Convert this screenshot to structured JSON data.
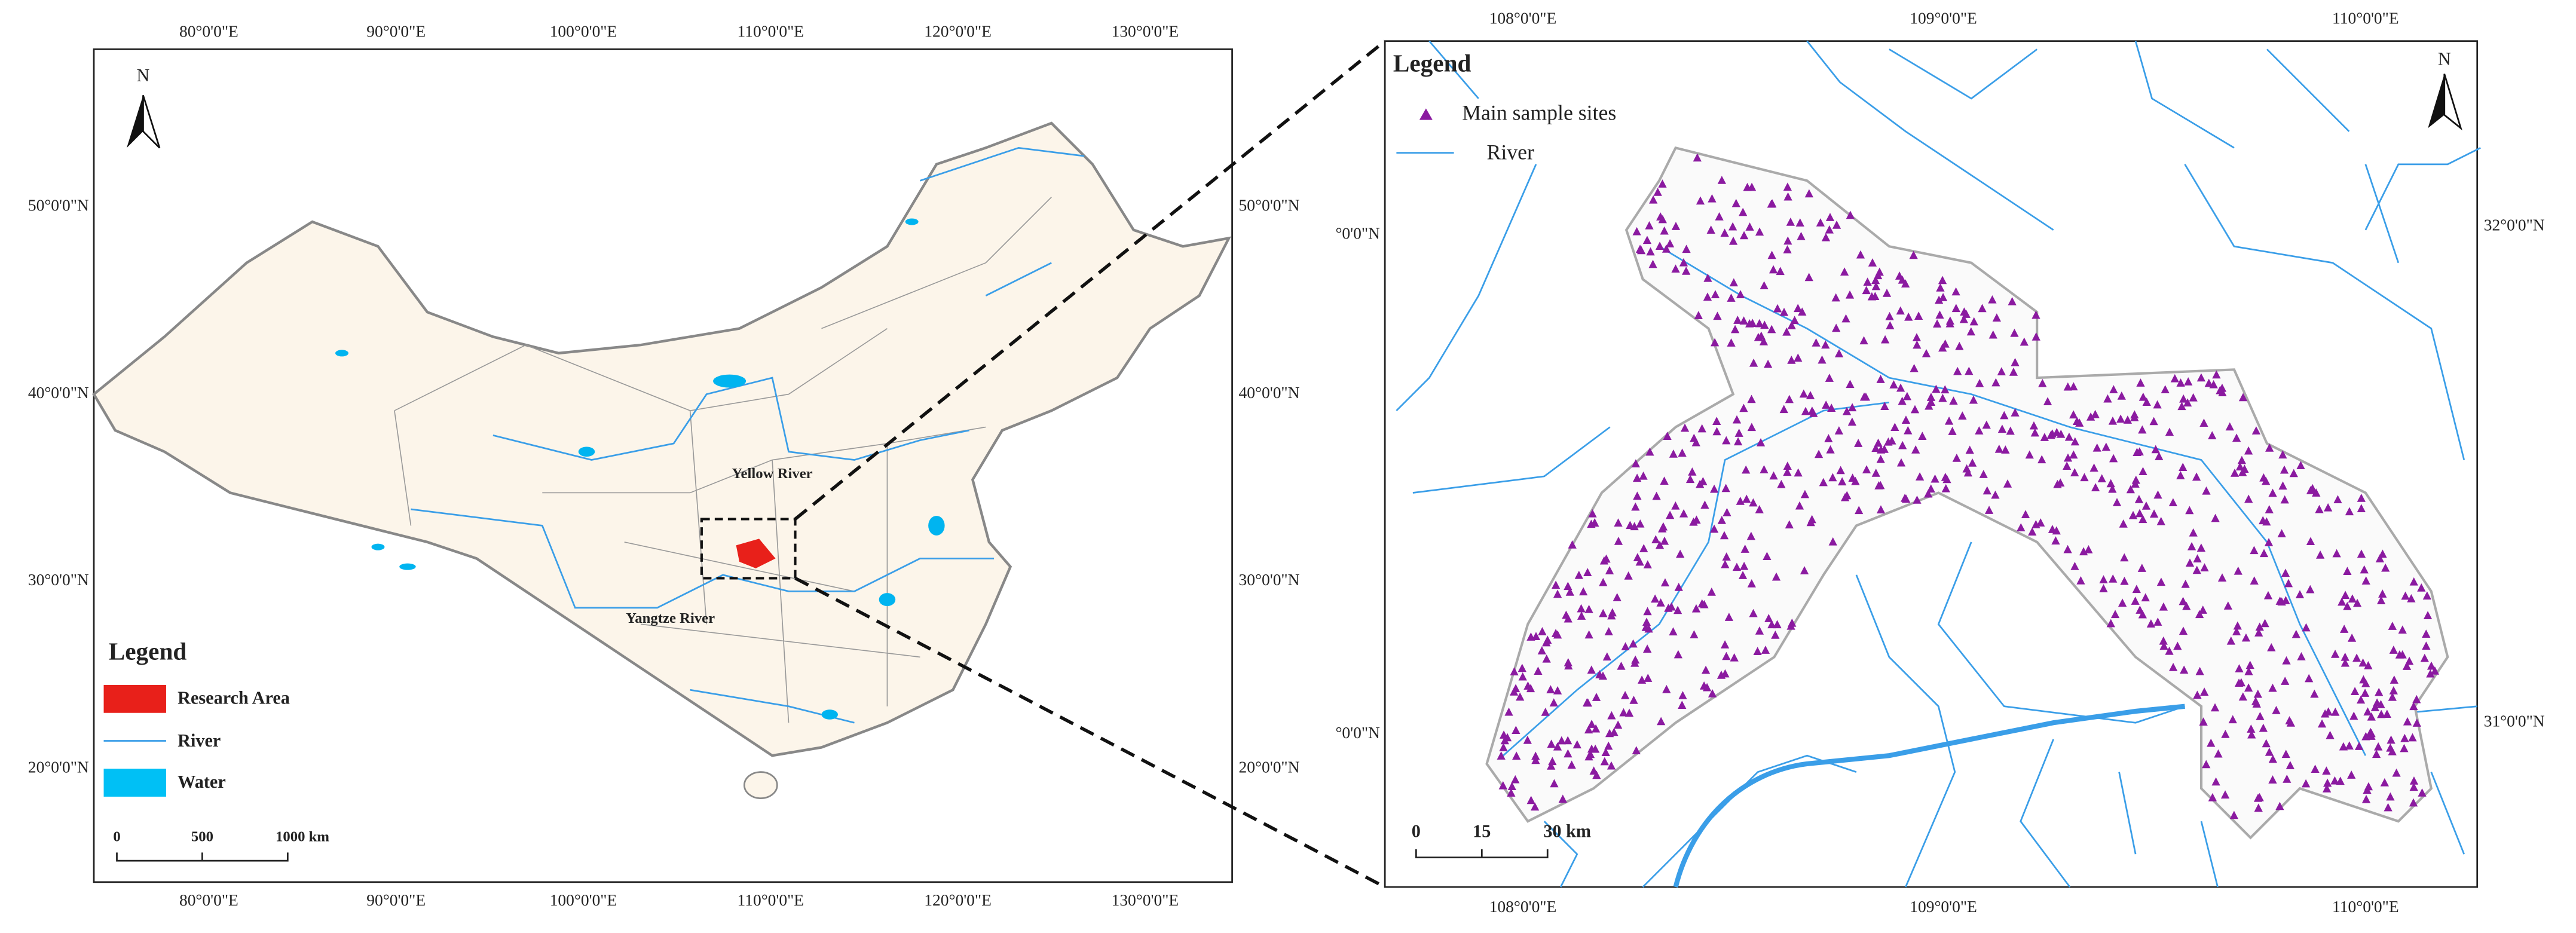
{
  "left_map": {
    "top_lon_labels": [
      "80°0'0\"E",
      "90°0'0\"E",
      "100°0'0\"E",
      "110°0'0\"E",
      "120°0'0\"E",
      "130°0'0\"E"
    ],
    "bottom_lon_labels": [
      "80°0'0\"E",
      "90°0'0\"E",
      "100°0'0\"E",
      "110°0'0\"E",
      "120°0'0\"E",
      "130°0'0\"E"
    ],
    "left_lat_labels": [
      "50°0'0\"N",
      "40°0'0\"N",
      "30°0'0\"N",
      "20°0'0\"N"
    ],
    "right_lat_labels": [
      "50°0'0\"N",
      "40°0'0\"N",
      "30°0'0\"N",
      "20°0'0\"N"
    ],
    "north": "N",
    "rivers": [
      "Yellow River",
      "Yangtze River"
    ],
    "legend": {
      "title": "Legend",
      "items": [
        "Research Area",
        "River",
        "Water"
      ]
    },
    "scale_bar": [
      "0",
      "500",
      "1000 km"
    ]
  },
  "right_map": {
    "top_lon_labels": [
      "108°0'0\"E",
      "109°0'0\"E",
      "110°0'0\"E"
    ],
    "bottom_lon_labels": [
      "108°0'0\"E",
      "109°0'0\"E",
      "110°0'0\"E"
    ],
    "left_lat_labels": [
      "°0'0\"N",
      "°0'0\"N"
    ],
    "right_lat_labels": [
      "32°0'0\"N",
      "31°0'0\"N"
    ],
    "north": "N",
    "legend": {
      "title": "Legend",
      "items": [
        "Main sample sites",
        "River"
      ]
    },
    "scale_bar": [
      "0",
      "15",
      "30 km"
    ]
  }
}
